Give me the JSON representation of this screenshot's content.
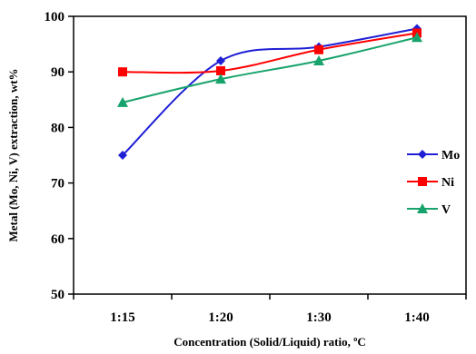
{
  "chart_data": {
    "type": "line",
    "title": "",
    "xlabel": "Concentration (Solid/Liquid) ratio, ºC",
    "ylabel": "Metal (Mo, Ni, V) extraction, wt%",
    "categories": [
      "1:15",
      "1:20",
      "1:30",
      "1:40"
    ],
    "ylim": [
      50,
      100
    ],
    "yticks": [
      50,
      60,
      70,
      80,
      90,
      100
    ],
    "grid": false,
    "legend_position": "right",
    "series": [
      {
        "name": "Mo",
        "values": [
          75,
          92,
          94.5,
          97.8
        ],
        "color": "#1f1fd6",
        "marker": "diamond-marker"
      },
      {
        "name": "Ni",
        "values": [
          90,
          90.2,
          94,
          97
        ],
        "color": "#ff0000",
        "marker": "square-marker"
      },
      {
        "name": "V",
        "values": [
          84.5,
          88.7,
          92,
          96.2
        ],
        "color": "#17a36b",
        "marker": "triangle-marker"
      }
    ]
  }
}
